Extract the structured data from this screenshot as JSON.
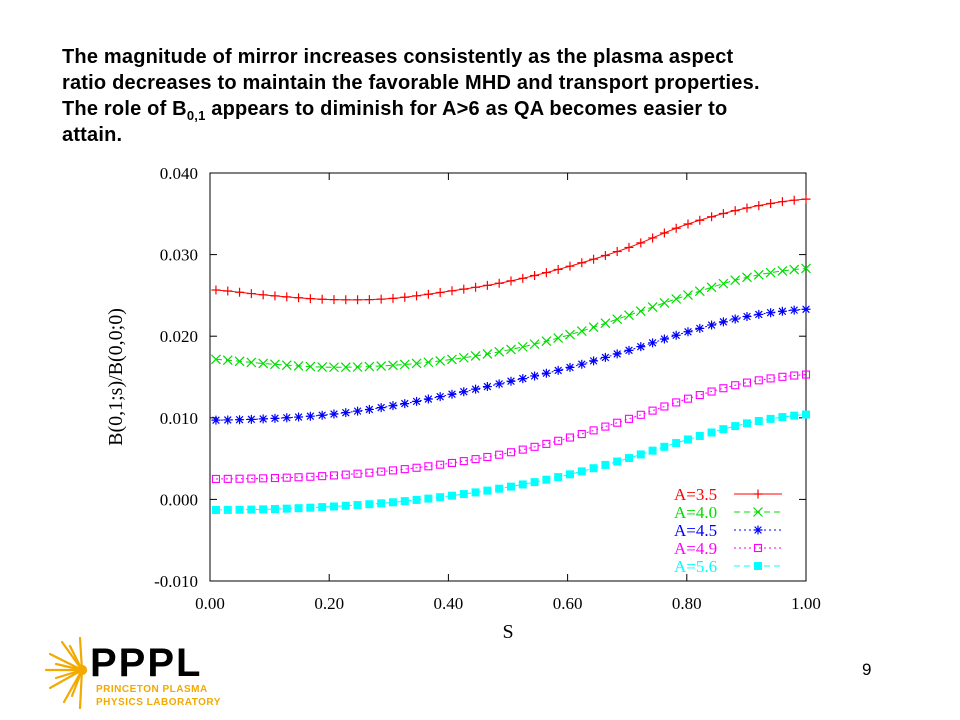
{
  "caption": {
    "line1": "The magnitude of mirror increases consistently as the plasma aspect",
    "line2": "ratio decreases to maintain the favorable MHD and transport properties.",
    "line3_pre": "The role of B",
    "line3_sub": "0,1",
    "line3_post": " appears to diminish for A>6 as QA becomes easier to",
    "line4": "attain."
  },
  "logo": {
    "name": "PPPL",
    "line1": "PRINCETON PLASMA",
    "line2": "PHYSICS LABORATORY",
    "accent_color": "#f2a900"
  },
  "page_number": "9",
  "chart_data": {
    "type": "line",
    "xlabel": "S",
    "ylabel": "B(0,1;s)/B(0,0;0)",
    "xlim": [
      0.0,
      1.0
    ],
    "ylim": [
      -0.01,
      0.04
    ],
    "xticks": [
      "0.00",
      "0.20",
      "0.40",
      "0.60",
      "0.80",
      "1.00"
    ],
    "yticks": [
      "-0.010",
      "0.000",
      "0.010",
      "0.020",
      "0.030",
      "0.040"
    ],
    "grid": false,
    "legend_position": "bottom-right",
    "x": [
      0.0,
      0.1,
      0.2,
      0.3,
      0.4,
      0.5,
      0.6,
      0.7,
      0.8,
      0.9,
      1.0
    ],
    "series": [
      {
        "name": "A=3.5",
        "color": "#ff0000",
        "marker": "plus",
        "dash": "solid",
        "values": [
          0.0257,
          0.025,
          0.0245,
          0.0246,
          0.0255,
          0.0267,
          0.0285,
          0.0308,
          0.0337,
          0.0357,
          0.0368
        ]
      },
      {
        "name": "A=4.0",
        "color": "#00dd00",
        "marker": "cross",
        "dash": "dashed",
        "values": [
          0.0172,
          0.0166,
          0.0162,
          0.0164,
          0.0171,
          0.0183,
          0.0201,
          0.0225,
          0.025,
          0.0272,
          0.0283
        ]
      },
      {
        "name": "A=4.5",
        "color": "#0000ff",
        "marker": "star",
        "dash": "dotted",
        "values": [
          0.0097,
          0.0099,
          0.0104,
          0.0114,
          0.0128,
          0.0144,
          0.0161,
          0.0182,
          0.0205,
          0.0224,
          0.0233
        ]
      },
      {
        "name": "A=4.9",
        "color": "#ff00ff",
        "marker": "square",
        "dash": "dotted",
        "values": [
          0.0025,
          0.0026,
          0.0029,
          0.0035,
          0.0044,
          0.0057,
          0.0075,
          0.0098,
          0.0123,
          0.0143,
          0.0153
        ]
      },
      {
        "name": "A=5.6",
        "color": "#00ffff",
        "marker": "filled-square",
        "dash": "dashed",
        "values": [
          -0.0013,
          -0.0012,
          -0.0009,
          -0.0004,
          0.0004,
          0.0015,
          0.003,
          0.005,
          0.0073,
          0.0093,
          0.0104
        ]
      }
    ]
  }
}
